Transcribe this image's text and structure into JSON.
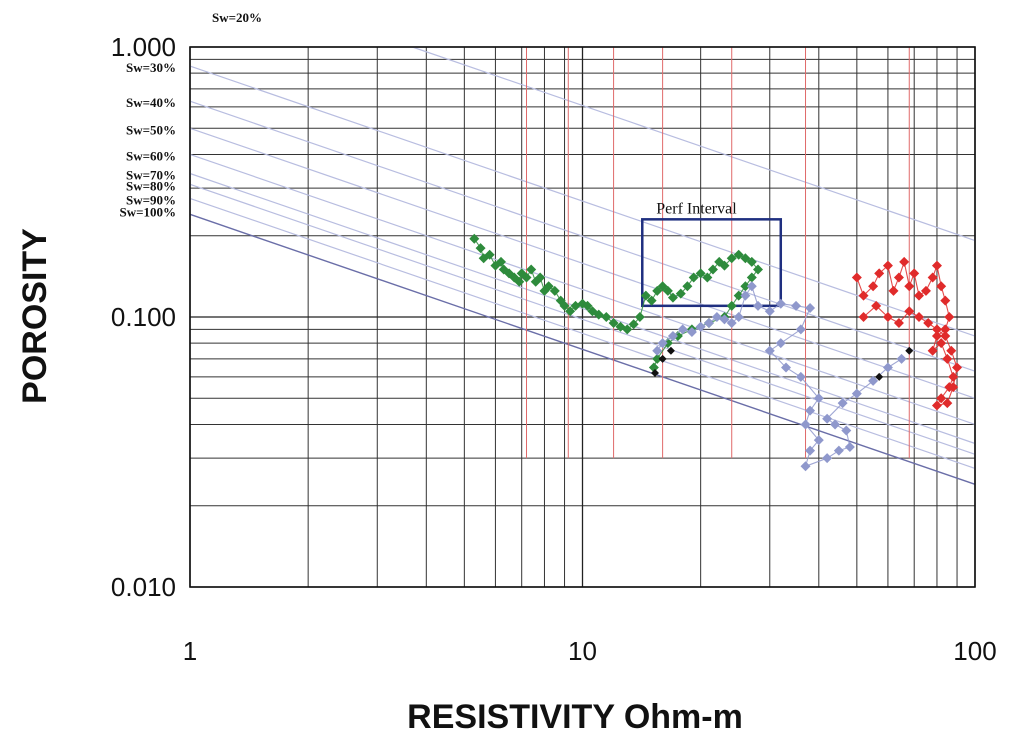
{
  "chart_data": {
    "type": "scatter",
    "xscale": "log",
    "yscale": "log",
    "xlim": [
      1,
      100
    ],
    "ylim": [
      0.01,
      1.0
    ],
    "xlabel": "RESISTIVITY Ohm-m",
    "ylabel": "POROSITY",
    "xticks": [
      {
        "value": 1,
        "label": "1"
      },
      {
        "value": 10,
        "label": "10"
      },
      {
        "value": 100,
        "label": "100"
      }
    ],
    "yticks": [
      {
        "value": 1.0,
        "label": "1.000"
      },
      {
        "value": 0.1,
        "label": "0.100"
      },
      {
        "value": 0.01,
        "label": "0.010"
      }
    ],
    "grid": true,
    "sw_lines": [
      {
        "label": "Sw=20%",
        "phi_at_1": 1.92
      },
      {
        "label": "Sw=30%",
        "phi_at_1": 0.85
      },
      {
        "label": "Sw=40%",
        "phi_at_1": 0.63
      },
      {
        "label": "Sw=50%",
        "phi_at_1": 0.5
      },
      {
        "label": "Sw=60%",
        "phi_at_1": 0.4
      },
      {
        "label": "Sw=70%",
        "phi_at_1": 0.34
      },
      {
        "label": "Sw=80%",
        "phi_at_1": 0.31
      },
      {
        "label": "Sw=90%",
        "phi_at_1": 0.275
      },
      {
        "label": "Sw=100%",
        "phi_at_1": 0.24
      }
    ],
    "red_reference_x": [
      7.2,
      9.2,
      12.0,
      16.0,
      24.0,
      37.0,
      68.0
    ],
    "annotation": {
      "label": "Perf Interval",
      "x_range": [
        14.2,
        32.0
      ],
      "y_range": [
        0.11,
        0.23
      ]
    },
    "series": [
      {
        "color": "#2e8b3c",
        "points": [
          [
            5.3,
            0.195
          ],
          [
            5.5,
            0.18
          ],
          [
            5.6,
            0.165
          ],
          [
            5.8,
            0.17
          ],
          [
            6.0,
            0.155
          ],
          [
            6.2,
            0.16
          ],
          [
            6.3,
            0.15
          ],
          [
            6.5,
            0.145
          ],
          [
            6.7,
            0.14
          ],
          [
            6.9,
            0.135
          ],
          [
            7.0,
            0.145
          ],
          [
            7.2,
            0.14
          ],
          [
            7.4,
            0.15
          ],
          [
            7.6,
            0.135
          ],
          [
            7.8,
            0.14
          ],
          [
            8.0,
            0.125
          ],
          [
            8.2,
            0.13
          ],
          [
            8.5,
            0.125
          ],
          [
            8.8,
            0.115
          ],
          [
            9.0,
            0.11
          ],
          [
            9.3,
            0.105
          ],
          [
            9.6,
            0.11
          ],
          [
            10.0,
            0.112
          ],
          [
            10.3,
            0.11
          ],
          [
            10.6,
            0.105
          ],
          [
            11.0,
            0.102
          ],
          [
            11.5,
            0.1
          ],
          [
            12.0,
            0.095
          ],
          [
            12.5,
            0.092
          ],
          [
            13.0,
            0.09
          ],
          [
            13.5,
            0.094
          ],
          [
            14.0,
            0.1
          ],
          [
            14.5,
            0.12
          ],
          [
            15.0,
            0.115
          ],
          [
            15.5,
            0.125
          ],
          [
            16.0,
            0.13
          ],
          [
            16.5,
            0.125
          ],
          [
            17.0,
            0.118
          ],
          [
            17.8,
            0.122
          ],
          [
            18.5,
            0.13
          ],
          [
            19.2,
            0.14
          ],
          [
            20.0,
            0.145
          ],
          [
            20.8,
            0.14
          ],
          [
            21.5,
            0.15
          ],
          [
            22.3,
            0.16
          ],
          [
            23.0,
            0.155
          ],
          [
            24.0,
            0.165
          ],
          [
            25.0,
            0.17
          ],
          [
            26.0,
            0.165
          ],
          [
            27.0,
            0.16
          ],
          [
            28.0,
            0.15
          ],
          [
            27.0,
            0.14
          ],
          [
            26.0,
            0.13
          ],
          [
            25.0,
            0.12
          ],
          [
            24.0,
            0.11
          ],
          [
            23.0,
            0.1
          ],
          [
            21.0,
            0.095
          ],
          [
            19.0,
            0.09
          ],
          [
            17.5,
            0.085
          ],
          [
            16.5,
            0.08
          ],
          [
            15.5,
            0.07
          ],
          [
            15.2,
            0.065
          ]
        ]
      },
      {
        "color": "#8f98cc",
        "points": [
          [
            15.5,
            0.075
          ],
          [
            16.0,
            0.08
          ],
          [
            17.0,
            0.085
          ],
          [
            18.0,
            0.09
          ],
          [
            19.0,
            0.088
          ],
          [
            20.0,
            0.092
          ],
          [
            21.0,
            0.095
          ],
          [
            22.0,
            0.1
          ],
          [
            23.0,
            0.098
          ],
          [
            24.0,
            0.095
          ],
          [
            25.0,
            0.1
          ],
          [
            26.0,
            0.12
          ],
          [
            27.0,
            0.13
          ],
          [
            28.0,
            0.11
          ],
          [
            30.0,
            0.105
          ],
          [
            32.0,
            0.112
          ],
          [
            35.0,
            0.11
          ],
          [
            38.0,
            0.108
          ],
          [
            36.0,
            0.09
          ],
          [
            32.0,
            0.08
          ],
          [
            30.0,
            0.075
          ],
          [
            33.0,
            0.065
          ],
          [
            36.0,
            0.06
          ],
          [
            40.0,
            0.05
          ],
          [
            38.0,
            0.045
          ],
          [
            37.0,
            0.04
          ],
          [
            40.0,
            0.035
          ],
          [
            38.0,
            0.032
          ],
          [
            37.0,
            0.028
          ],
          [
            42.0,
            0.03
          ],
          [
            45.0,
            0.032
          ],
          [
            48.0,
            0.033
          ],
          [
            47.0,
            0.038
          ],
          [
            44.0,
            0.04
          ],
          [
            42.0,
            0.042
          ],
          [
            46.0,
            0.048
          ],
          [
            50.0,
            0.052
          ],
          [
            55.0,
            0.058
          ],
          [
            60.0,
            0.065
          ],
          [
            65.0,
            0.07
          ]
        ]
      },
      {
        "color": "#e02b2b",
        "points": [
          [
            50.0,
            0.14
          ],
          [
            52.0,
            0.12
          ],
          [
            55.0,
            0.13
          ],
          [
            57.0,
            0.145
          ],
          [
            60.0,
            0.155
          ],
          [
            62.0,
            0.125
          ],
          [
            64.0,
            0.14
          ],
          [
            66.0,
            0.16
          ],
          [
            68.0,
            0.13
          ],
          [
            70.0,
            0.145
          ],
          [
            72.0,
            0.12
          ],
          [
            75.0,
            0.125
          ],
          [
            78.0,
            0.14
          ],
          [
            80.0,
            0.155
          ],
          [
            82.0,
            0.13
          ],
          [
            84.0,
            0.115
          ],
          [
            86.0,
            0.1
          ],
          [
            84.0,
            0.09
          ],
          [
            80.0,
            0.085
          ],
          [
            78.0,
            0.075
          ],
          [
            82.0,
            0.08
          ],
          [
            85.0,
            0.07
          ],
          [
            88.0,
            0.06
          ],
          [
            86.0,
            0.055
          ],
          [
            82.0,
            0.05
          ],
          [
            80.0,
            0.047
          ],
          [
            85.0,
            0.048
          ],
          [
            88.0,
            0.055
          ],
          [
            90.0,
            0.065
          ],
          [
            87.0,
            0.075
          ],
          [
            84.0,
            0.085
          ],
          [
            80.0,
            0.09
          ],
          [
            76.0,
            0.095
          ],
          [
            72.0,
            0.1
          ],
          [
            68.0,
            0.105
          ],
          [
            64.0,
            0.095
          ],
          [
            60.0,
            0.1
          ],
          [
            56.0,
            0.11
          ],
          [
            52.0,
            0.1
          ]
        ]
      },
      {
        "color": "#111111",
        "points": [
          [
            15.3,
            0.062
          ],
          [
            16.0,
            0.07
          ],
          [
            16.8,
            0.075
          ],
          [
            57.0,
            0.06
          ],
          [
            68.0,
            0.075
          ]
        ]
      }
    ]
  }
}
